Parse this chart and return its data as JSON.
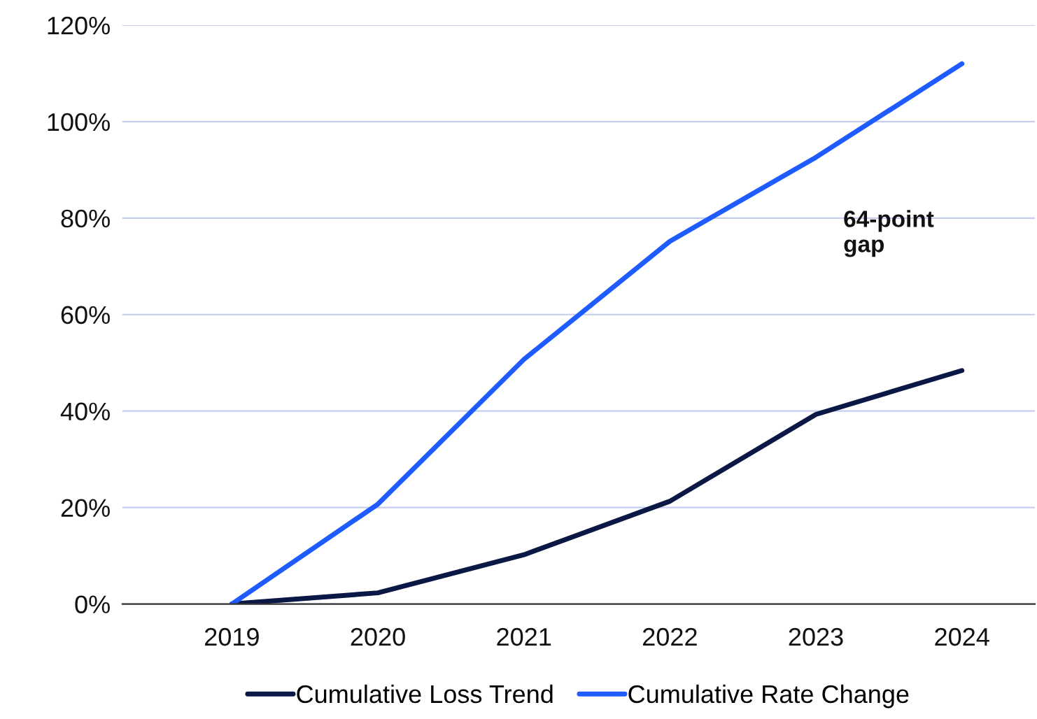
{
  "chart_data": {
    "type": "line",
    "categories": [
      "2019",
      "2020",
      "2021",
      "2022",
      "2023",
      "2024"
    ],
    "series": [
      {
        "name": "Cumulative Loss Trend",
        "color": "#0b1846",
        "values": [
          0,
          2.3,
          10.2,
          21.3,
          39.3,
          48.4
        ]
      },
      {
        "name": "Cumulative Rate Change",
        "color": "#1f5cff",
        "values": [
          0,
          20.7,
          50.7,
          75.2,
          92.6,
          112
        ]
      }
    ],
    "ylim": [
      0,
      120
    ],
    "yticks": [
      {
        "value": 0,
        "label": "0%"
      },
      {
        "value": 20,
        "label": "20%"
      },
      {
        "value": 40,
        "label": "40%"
      },
      {
        "value": 60,
        "label": "60%"
      },
      {
        "value": 80,
        "label": "80%"
      },
      {
        "value": 100,
        "label": "100%"
      },
      {
        "value": 120,
        "label": "120%"
      }
    ],
    "grid": "y",
    "legend": "bottom",
    "marker": "none",
    "line_style": "solid",
    "annotations": [
      "64-point\ngap"
    ]
  }
}
